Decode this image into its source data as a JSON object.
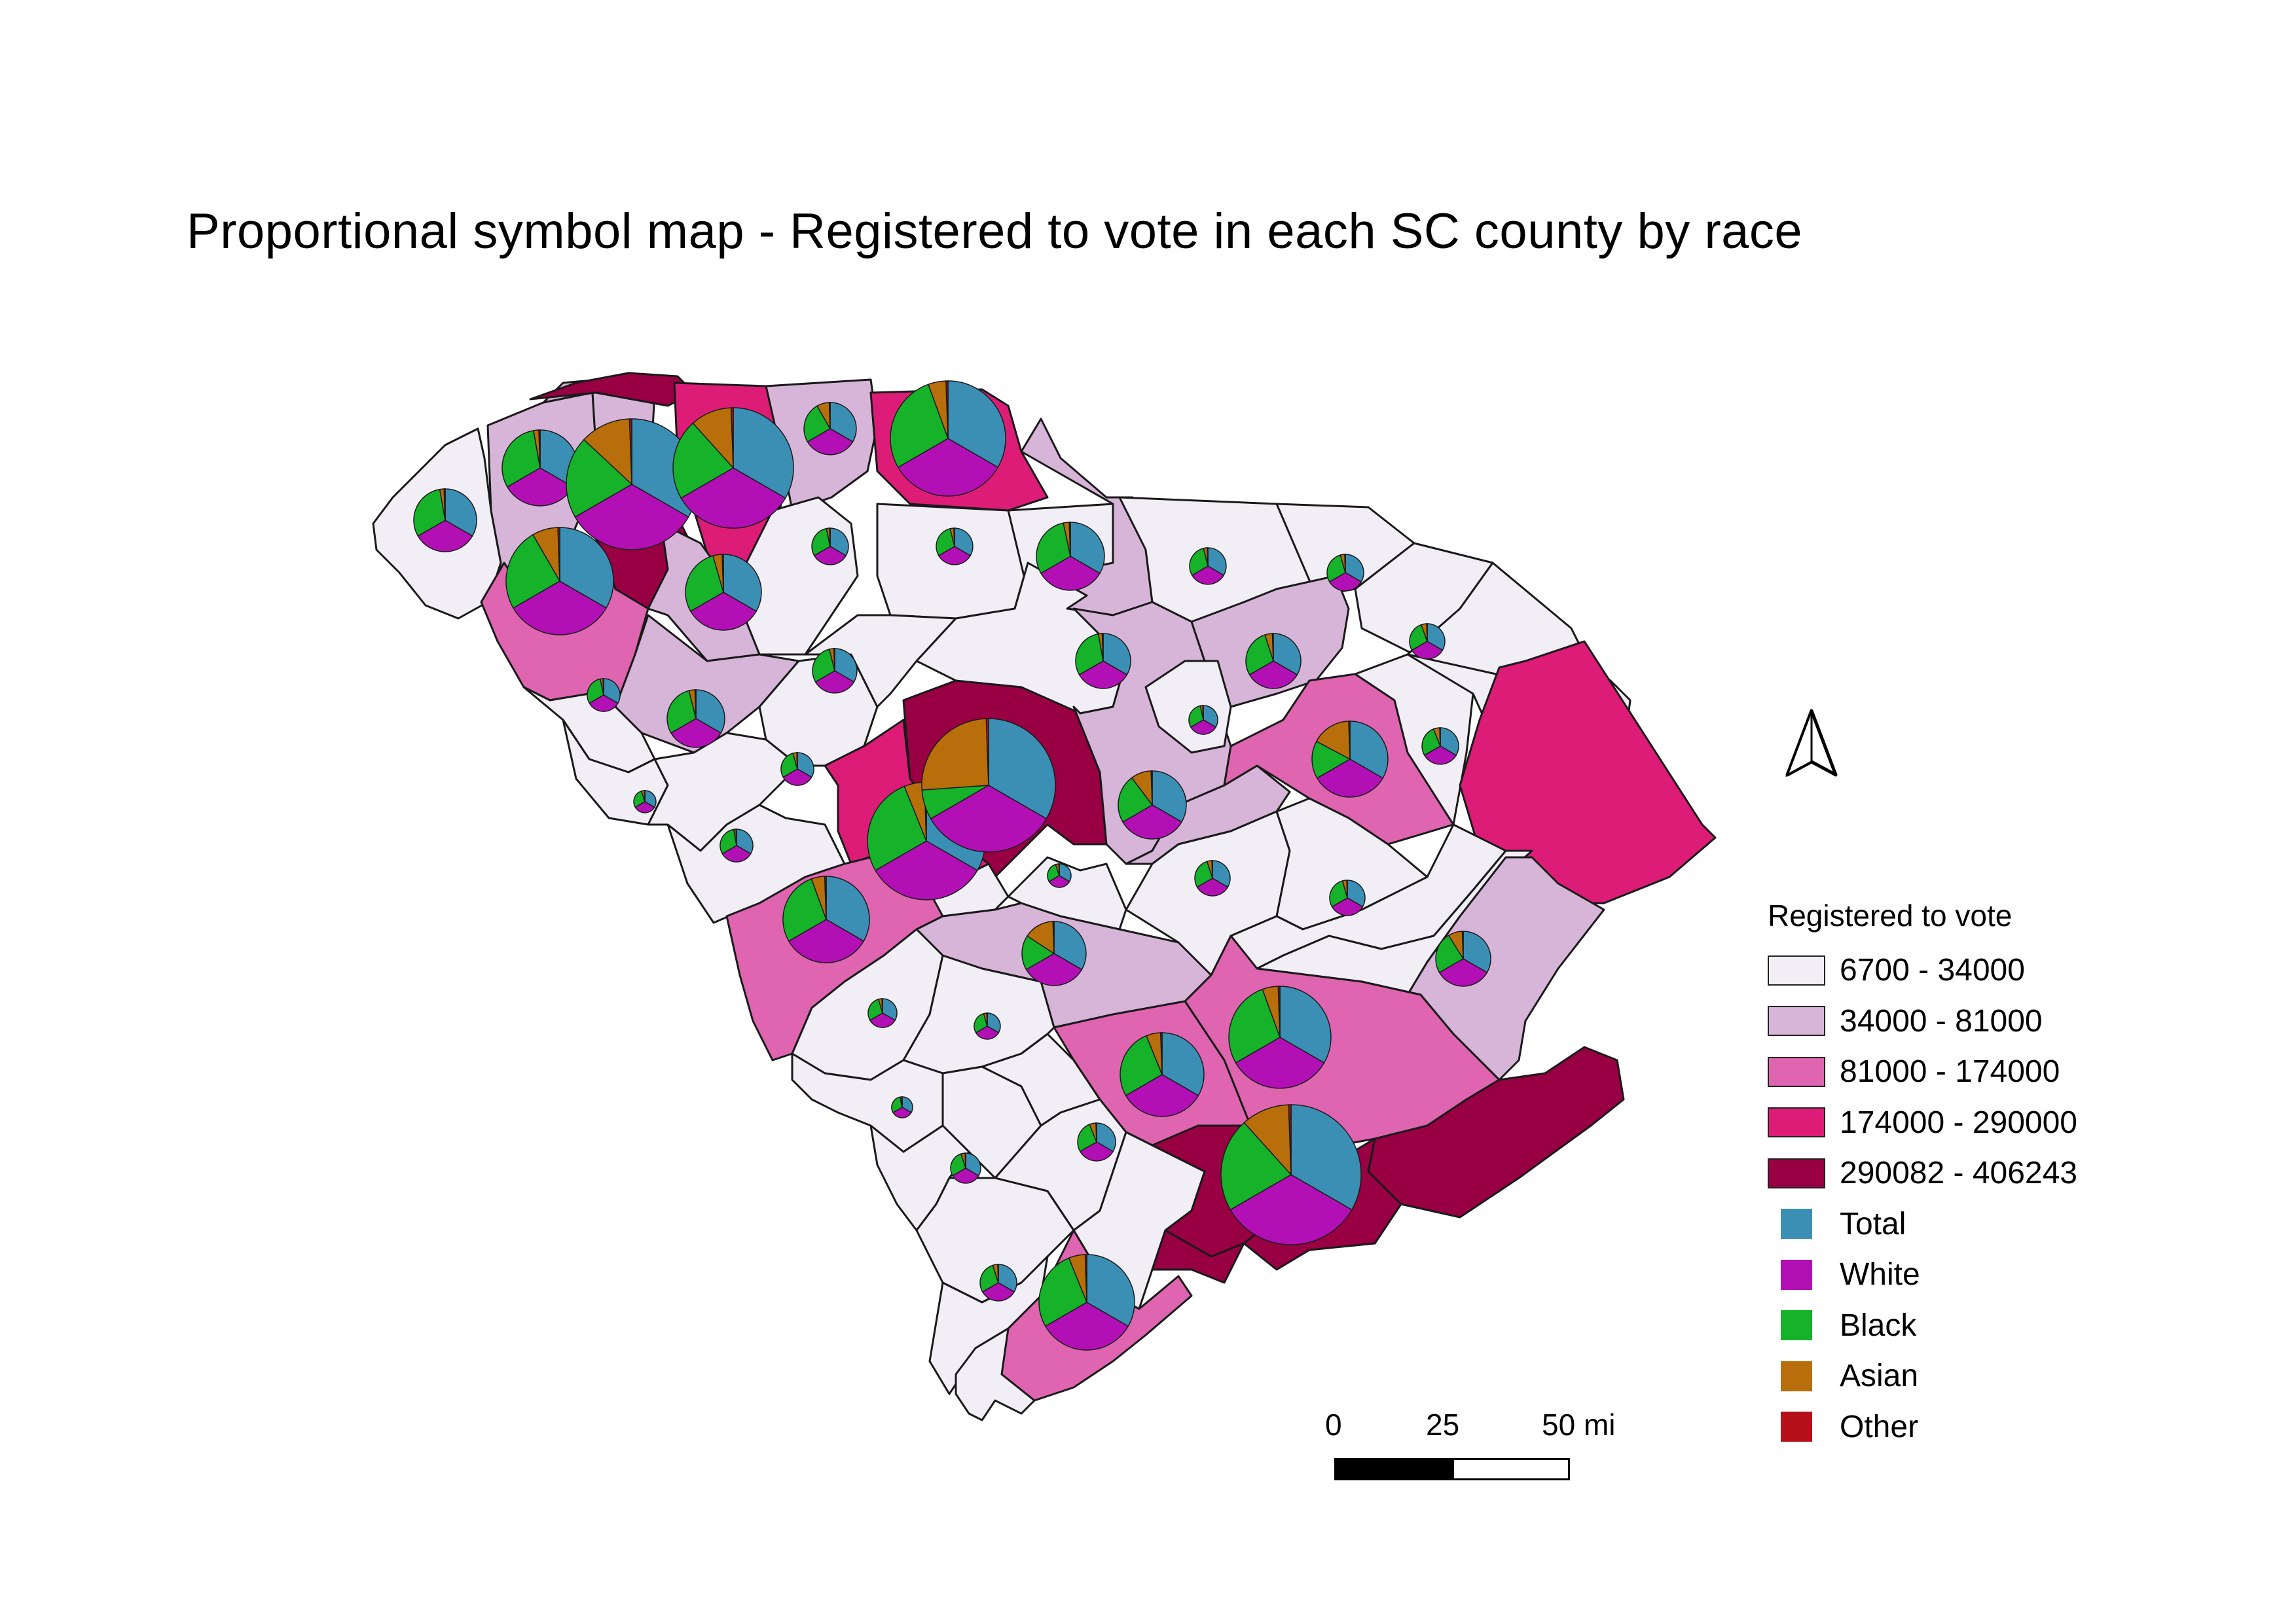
{
  "title": "Proportional symbol map - Registered to vote in each SC county by race",
  "colors": {
    "class_1": "#f1eef6",
    "class_2": "#d7b5d8",
    "class_3": "#df65b0",
    "class_4": "#dd1c77",
    "class_5": "#980043",
    "total": "#3b8fb4",
    "white": "#b20fb5",
    "black": "#16b22a",
    "asian": "#b86e0b",
    "other": "#b6101a",
    "outline": "#1a1a1a"
  },
  "legend": {
    "title": "Registered to vote",
    "classes": [
      {
        "label": "6700 - 34000",
        "color_key": "class_1"
      },
      {
        "label": "34000 - 81000",
        "color_key": "class_2"
      },
      {
        "label": "81000 - 174000",
        "color_key": "class_3"
      },
      {
        "label": "174000 - 290000",
        "color_key": "class_4"
      },
      {
        "label": "290082 - 406243",
        "color_key": "class_5"
      }
    ],
    "symbols": [
      {
        "label": "Total",
        "color_key": "total"
      },
      {
        "label": "White",
        "color_key": "white"
      },
      {
        "label": "Black",
        "color_key": "black"
      },
      {
        "label": "Asian",
        "color_key": "asian"
      },
      {
        "label": "Other",
        "color_key": "other"
      }
    ]
  },
  "scale_bar": {
    "labels": [
      "0",
      "25",
      "50 mi"
    ]
  },
  "north_arrow": "north-arrow-icon"
}
